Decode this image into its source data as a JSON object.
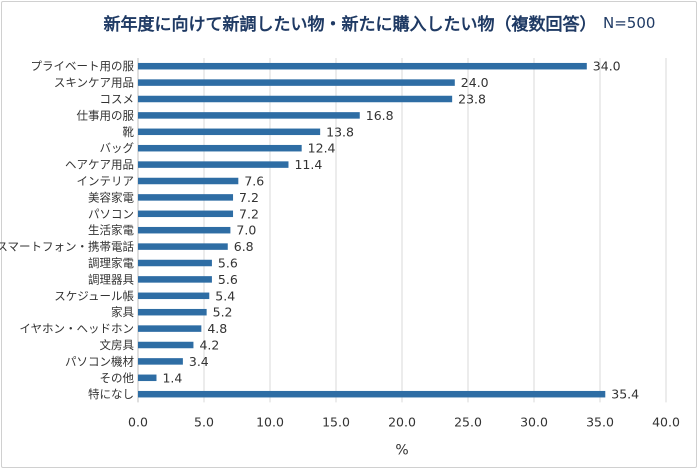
{
  "chart_data": {
    "type": "bar",
    "orientation": "horizontal",
    "title": "新年度に向けて新調したい物・新たに購入したい物（複数回答）",
    "sample_size": "N=500",
    "categories": [
      "プライベート用の服",
      "スキンケア用品",
      "コスメ",
      "仕事用の服",
      "靴",
      "バッグ",
      "ヘアケア用品",
      "インテリア",
      "美容家電",
      "パソコン",
      "生活家電",
      "スマートフォン・携帯電話",
      "調理家電",
      "調理器具",
      "スケジュール帳",
      "家具",
      "イヤホン・ヘッドホン",
      "文房具",
      "パソコン機材",
      "その他",
      "特になし"
    ],
    "values": [
      34.0,
      24.0,
      23.8,
      16.8,
      13.8,
      12.4,
      11.4,
      7.6,
      7.2,
      7.2,
      7.0,
      6.8,
      5.6,
      5.6,
      5.4,
      5.2,
      4.8,
      4.2,
      3.4,
      1.4,
      35.4
    ],
    "value_labels": [
      "34.0",
      "24.0",
      "23.8",
      "16.8",
      "13.8",
      "12.4",
      "11.4",
      "7.6",
      "7.2",
      "7.2",
      "7.0",
      "6.8",
      "5.6",
      "5.6",
      "5.4",
      "5.2",
      "4.8",
      "4.2",
      "3.4",
      "1.4",
      "35.4"
    ],
    "xlabel": "%",
    "xlim": [
      0,
      40
    ],
    "x_ticks": [
      "0.0",
      "5.0",
      "10.0",
      "15.0",
      "20.0",
      "25.0",
      "30.0",
      "35.0",
      "40.0"
    ],
    "grid": true,
    "bar_color": "#2e6da4",
    "title_color": "#1f3a64"
  }
}
